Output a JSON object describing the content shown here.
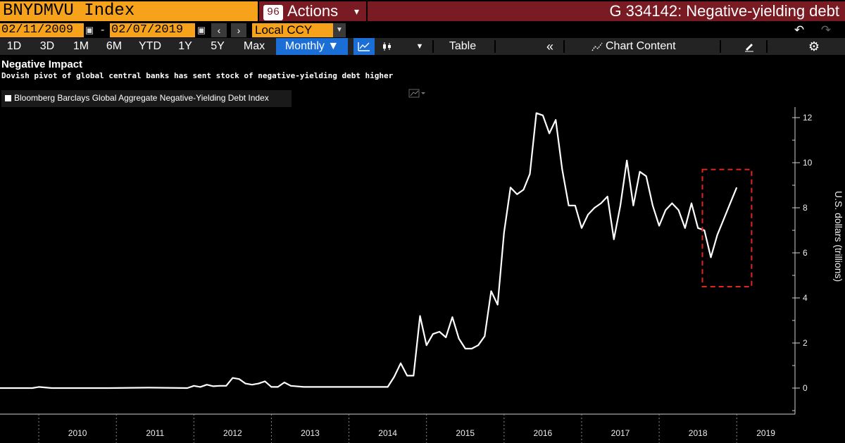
{
  "header": {
    "ticker": "BNYDMVU Index",
    "actions_number": "96",
    "actions_label": "Actions",
    "title": "G 334142: Negative-yielding debt"
  },
  "daterow": {
    "start": "02/11/2009",
    "end": "02/07/2019",
    "currency": "Local CCY"
  },
  "toolbar": {
    "periods": [
      "1D",
      "3D",
      "1M",
      "6M",
      "YTD",
      "1Y",
      "5Y",
      "Max"
    ],
    "frequency": "Monthly ▼",
    "table": "Table",
    "chart_content": "Chart Content"
  },
  "chart": {
    "title": "Negative Impact",
    "subtitle": "Dovish pivot of global central banks has sent stock of negative-yielding debt higher",
    "legend_label": "Bloomberg Barclays Global Aggregate Negative-Yielding Debt Index",
    "y_axis_label": "U.S. dollars (trillions)",
    "colors": {
      "line": "#ffffff",
      "highlight": "#e0261e",
      "accent": "#f7a21b",
      "title_bar": "#7a1a23",
      "selected": "#1b6ed6"
    }
  },
  "chart_data": {
    "type": "line",
    "title": "Negative Impact",
    "subtitle": "Dovish pivot of global central banks has sent stock of negative-yielding debt higher",
    "ylabel": "U.S. dollars (trillions)",
    "ylim": [
      -1,
      13
    ],
    "yticks": [
      0,
      2,
      4,
      6,
      8,
      10,
      12
    ],
    "xticks": [
      "2010",
      "2011",
      "2012",
      "2013",
      "2014",
      "2015",
      "2016",
      "2017",
      "2018",
      "2019"
    ],
    "grid": false,
    "legend": "top-left",
    "highlight_box": {
      "x_from": "2018-09",
      "x_to": "2019-02",
      "y_from": 4.5,
      "y_to": 9.7
    },
    "series": [
      {
        "name": "Bloomberg Barclays Global Aggregate Negative-Yielding Debt Index",
        "points": [
          [
            "2009-02",
            0
          ],
          [
            "2009-06",
            0
          ],
          [
            "2009-12",
            0
          ],
          [
            "2010-01",
            0.05
          ],
          [
            "2010-03",
            0
          ],
          [
            "2010-12",
            0
          ],
          [
            "2011-06",
            0.02
          ],
          [
            "2011-12",
            0
          ],
          [
            "2012-01",
            0.1
          ],
          [
            "2012-02",
            0.05
          ],
          [
            "2012-03",
            0.15
          ],
          [
            "2012-04",
            0.08
          ],
          [
            "2012-05",
            0.1
          ],
          [
            "2012-06",
            0.1
          ],
          [
            "2012-07",
            0.45
          ],
          [
            "2012-08",
            0.4
          ],
          [
            "2012-09",
            0.2
          ],
          [
            "2012-10",
            0.15
          ],
          [
            "2012-11",
            0.2
          ],
          [
            "2012-12",
            0.3
          ],
          [
            "2013-01",
            0.05
          ],
          [
            "2013-02",
            0.05
          ],
          [
            "2013-03",
            0.25
          ],
          [
            "2013-04",
            0.1
          ],
          [
            "2013-06",
            0.05
          ],
          [
            "2013-09",
            0.05
          ],
          [
            "2013-12",
            0.05
          ],
          [
            "2014-03",
            0.05
          ],
          [
            "2014-06",
            0.05
          ],
          [
            "2014-07",
            0.05
          ],
          [
            "2014-08",
            0.5
          ],
          [
            "2014-09",
            1.1
          ],
          [
            "2014-10",
            0.55
          ],
          [
            "2014-11",
            0.55
          ],
          [
            "2014-12",
            3.2
          ],
          [
            "2015-01",
            1.9
          ],
          [
            "2015-02",
            2.4
          ],
          [
            "2015-03",
            2.5
          ],
          [
            "2015-04",
            2.25
          ],
          [
            "2015-05",
            3.15
          ],
          [
            "2015-06",
            2.2
          ],
          [
            "2015-07",
            1.75
          ],
          [
            "2015-08",
            1.75
          ],
          [
            "2015-09",
            1.9
          ],
          [
            "2015-10",
            2.3
          ],
          [
            "2015-11",
            4.3
          ],
          [
            "2015-12",
            3.7
          ],
          [
            "2016-01",
            6.9
          ],
          [
            "2016-02",
            8.9
          ],
          [
            "2016-03",
            8.6
          ],
          [
            "2016-04",
            8.8
          ],
          [
            "2016-05",
            9.5
          ],
          [
            "2016-06",
            12.2
          ],
          [
            "2016-07",
            12.1
          ],
          [
            "2016-08",
            11.3
          ],
          [
            "2016-09",
            11.9
          ],
          [
            "2016-10",
            9.7
          ],
          [
            "2016-11",
            8.1
          ],
          [
            "2016-12",
            8.1
          ],
          [
            "2017-01",
            7.1
          ],
          [
            "2017-02",
            7.7
          ],
          [
            "2017-03",
            8.0
          ],
          [
            "2017-04",
            8.2
          ],
          [
            "2017-05",
            8.5
          ],
          [
            "2017-06",
            6.6
          ],
          [
            "2017-07",
            8.1
          ],
          [
            "2017-08",
            10.1
          ],
          [
            "2017-09",
            8.1
          ],
          [
            "2017-10",
            9.6
          ],
          [
            "2017-11",
            9.4
          ],
          [
            "2017-12",
            8.1
          ],
          [
            "2018-01",
            7.2
          ],
          [
            "2018-02",
            7.9
          ],
          [
            "2018-03",
            8.2
          ],
          [
            "2018-04",
            7.9
          ],
          [
            "2018-05",
            7.1
          ],
          [
            "2018-06",
            8.2
          ],
          [
            "2018-07",
            7.1
          ],
          [
            "2018-08",
            7.0
          ],
          [
            "2018-09",
            5.8
          ],
          [
            "2018-10",
            6.8
          ],
          [
            "2018-11",
            7.5
          ],
          [
            "2018-12",
            8.2
          ],
          [
            "2019-01",
            8.9
          ]
        ]
      }
    ]
  }
}
